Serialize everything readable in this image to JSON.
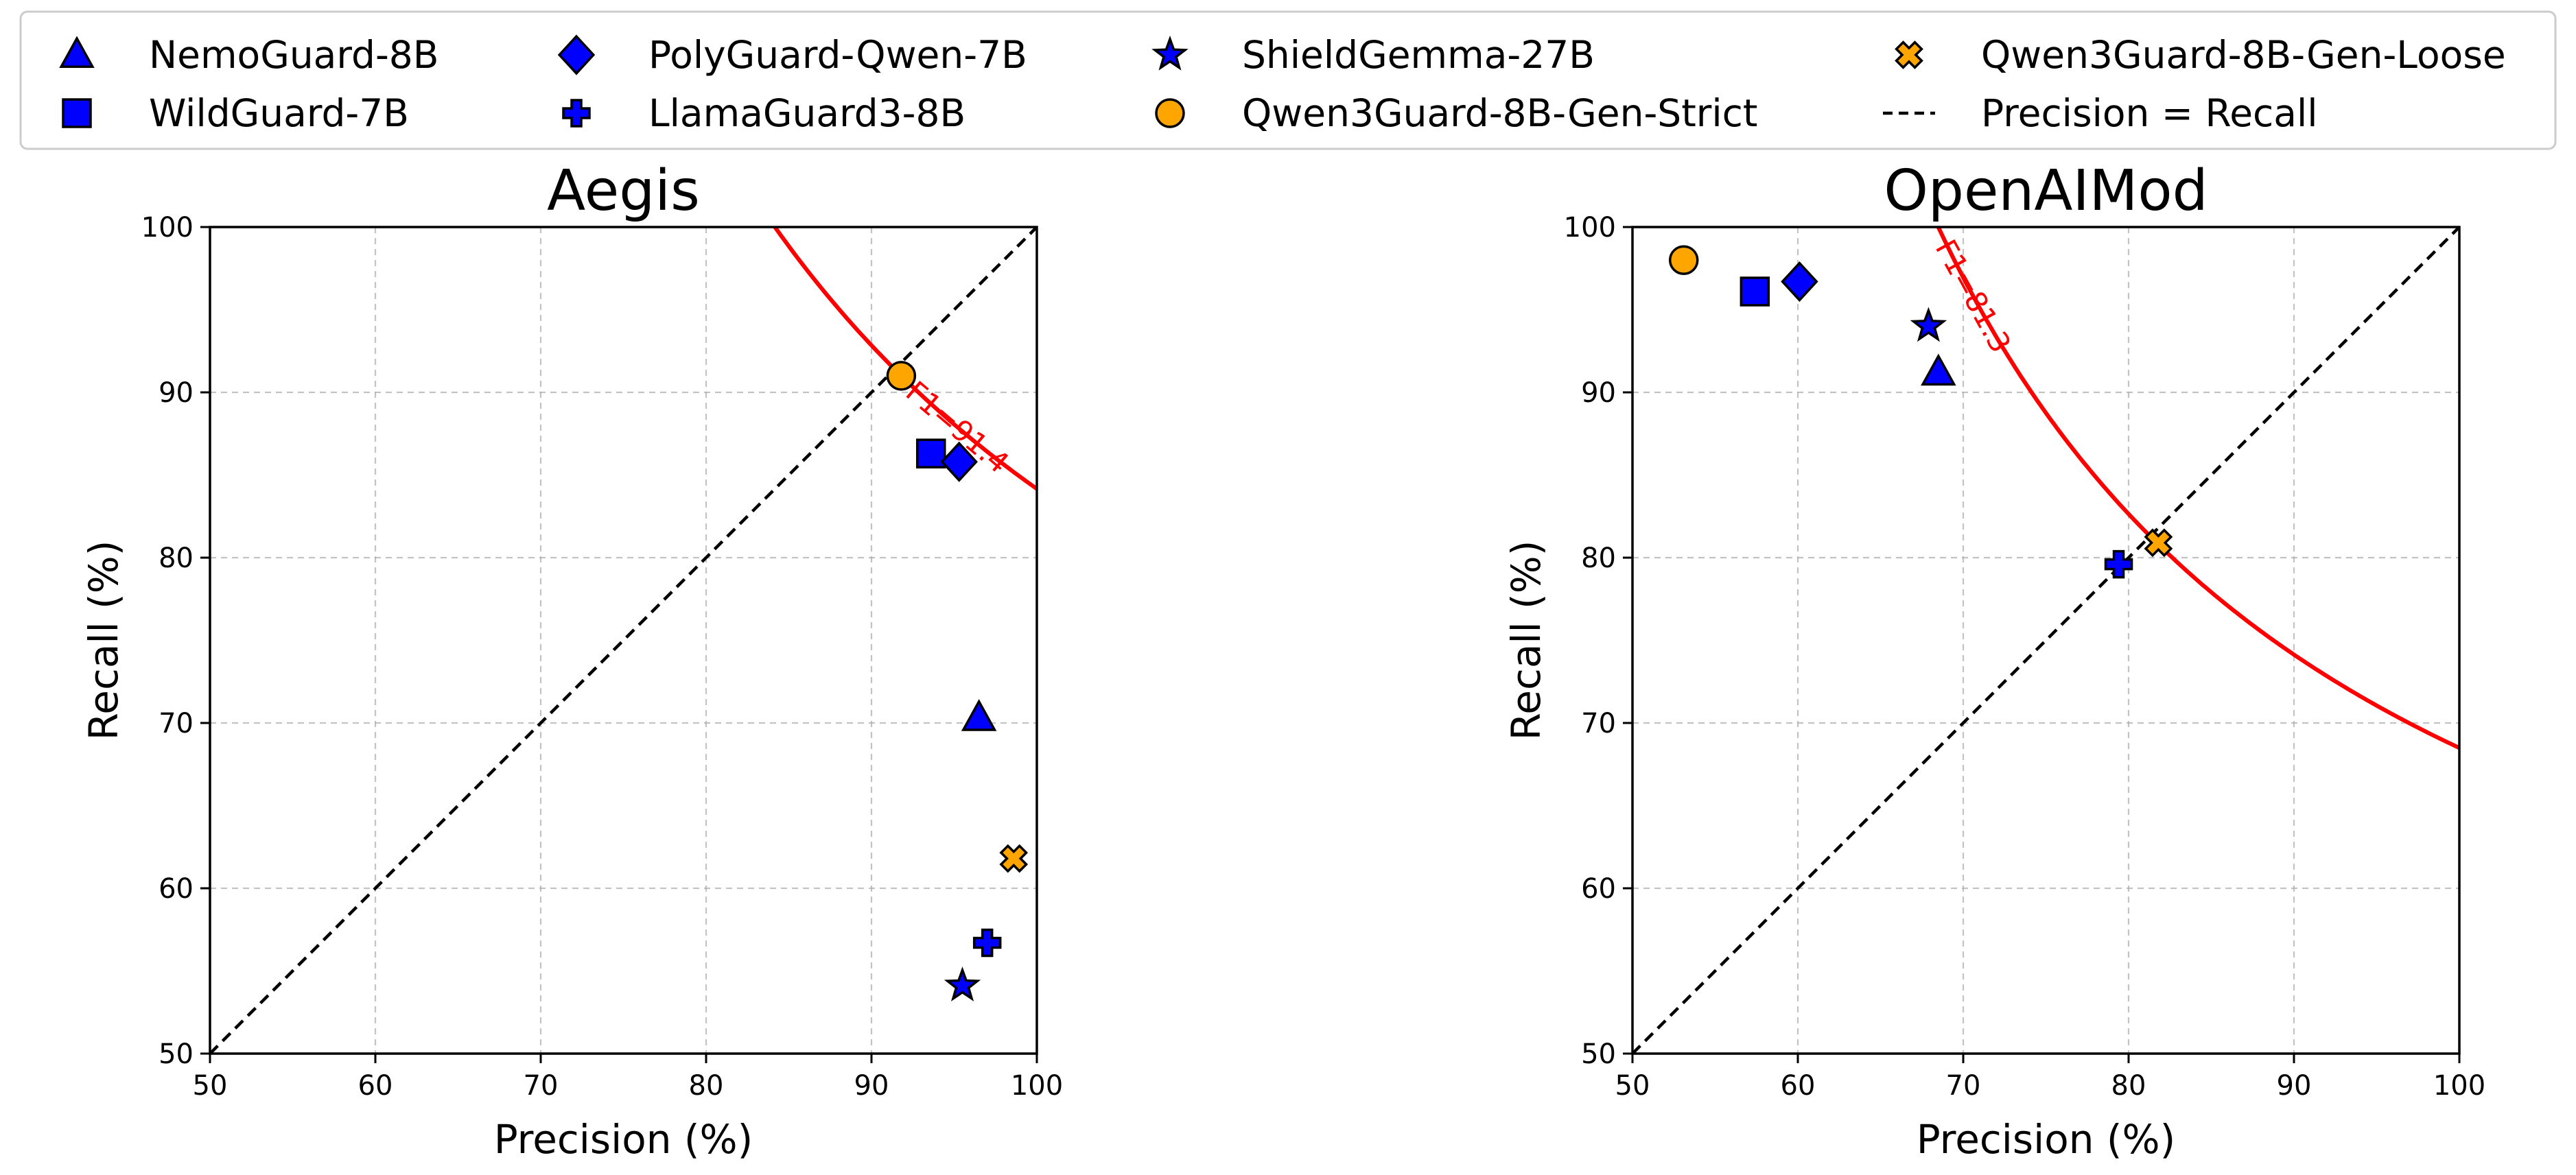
{
  "legend": {
    "entries": [
      {
        "label": "NemoGuard-8B",
        "marker": "triangle",
        "color": "#0000ff"
      },
      {
        "label": "PolyGuard-Qwen-7B",
        "marker": "diamond",
        "color": "#0000ff"
      },
      {
        "label": "ShieldGemma-27B",
        "marker": "star",
        "color": "#0000ff"
      },
      {
        "label": "Qwen3Guard-8B-Gen-Loose",
        "marker": "x",
        "color": "#ffa500"
      },
      {
        "label": "WildGuard-7B",
        "marker": "square",
        "color": "#0000ff"
      },
      {
        "label": "LlamaGuard3-8B",
        "marker": "plus",
        "color": "#0000ff"
      },
      {
        "label": "Qwen3Guard-8B-Gen-Strict",
        "marker": "circle",
        "color": "#ffa500"
      },
      {
        "label": "Precision = Recall",
        "marker": "dashed-line",
        "color": "#000000"
      }
    ]
  },
  "chart_data": [
    {
      "type": "scatter",
      "title": "Aegis",
      "xlabel": "Precision (%)",
      "ylabel": "Recall (%)",
      "xlim": [
        50,
        100
      ],
      "ylim": [
        50,
        100
      ],
      "xticks": [
        "50",
        "60",
        "70",
        "80",
        "90",
        "100"
      ],
      "yticks": [
        "50",
        "60",
        "70",
        "80",
        "90",
        "100"
      ],
      "grid": true,
      "f1_curve": {
        "f1": 91.4,
        "label": "F1=91.4",
        "color": "#ff0000"
      },
      "points": [
        {
          "name": "NemoGuard-8B",
          "marker": "triangle",
          "color": "#0000ff",
          "x": 96.5,
          "y": 70.3
        },
        {
          "name": "WildGuard-7B",
          "marker": "square",
          "color": "#0000ff",
          "x": 93.6,
          "y": 86.3
        },
        {
          "name": "PolyGuard-Qwen-7B",
          "marker": "diamond",
          "color": "#0000ff",
          "x": 95.3,
          "y": 85.8
        },
        {
          "name": "LlamaGuard3-8B",
          "marker": "plus",
          "color": "#0000ff",
          "x": 97.0,
          "y": 56.7
        },
        {
          "name": "ShieldGemma-27B",
          "marker": "star",
          "color": "#0000ff",
          "x": 95.5,
          "y": 54.1
        },
        {
          "name": "Qwen3Guard-8B-Gen-Strict",
          "marker": "circle",
          "color": "#ffa500",
          "x": 91.8,
          "y": 91.0
        },
        {
          "name": "Qwen3Guard-8B-Gen-Loose",
          "marker": "x",
          "color": "#ffa500",
          "x": 98.6,
          "y": 61.8
        }
      ]
    },
    {
      "type": "scatter",
      "title": "OpenAIMod",
      "xlabel": "Precision (%)",
      "ylabel": "Recall (%)",
      "xlim": [
        50,
        100
      ],
      "ylim": [
        50,
        100
      ],
      "xticks": [
        "50",
        "60",
        "70",
        "80",
        "90",
        "100"
      ],
      "yticks": [
        "50",
        "60",
        "70",
        "80",
        "90",
        "100"
      ],
      "grid": true,
      "f1_curve": {
        "f1": 81.3,
        "label": "F1=81.3",
        "color": "#ff0000"
      },
      "points": [
        {
          "name": "NemoGuard-8B",
          "marker": "triangle",
          "color": "#0000ff",
          "x": 68.5,
          "y": 91.2
        },
        {
          "name": "WildGuard-7B",
          "marker": "square",
          "color": "#0000ff",
          "x": 57.4,
          "y": 96.1
        },
        {
          "name": "PolyGuard-Qwen-7B",
          "marker": "diamond",
          "color": "#0000ff",
          "x": 60.1,
          "y": 96.7
        },
        {
          "name": "LlamaGuard3-8B",
          "marker": "plus",
          "color": "#0000ff",
          "x": 79.4,
          "y": 79.6
        },
        {
          "name": "ShieldGemma-27B",
          "marker": "star",
          "color": "#0000ff",
          "x": 67.9,
          "y": 94.0
        },
        {
          "name": "Qwen3Guard-8B-Gen-Strict",
          "marker": "circle",
          "color": "#ffa500",
          "x": 53.1,
          "y": 98.0
        },
        {
          "name": "Qwen3Guard-8B-Gen-Loose",
          "marker": "x",
          "color": "#ffa500",
          "x": 81.8,
          "y": 80.9
        }
      ]
    }
  ]
}
